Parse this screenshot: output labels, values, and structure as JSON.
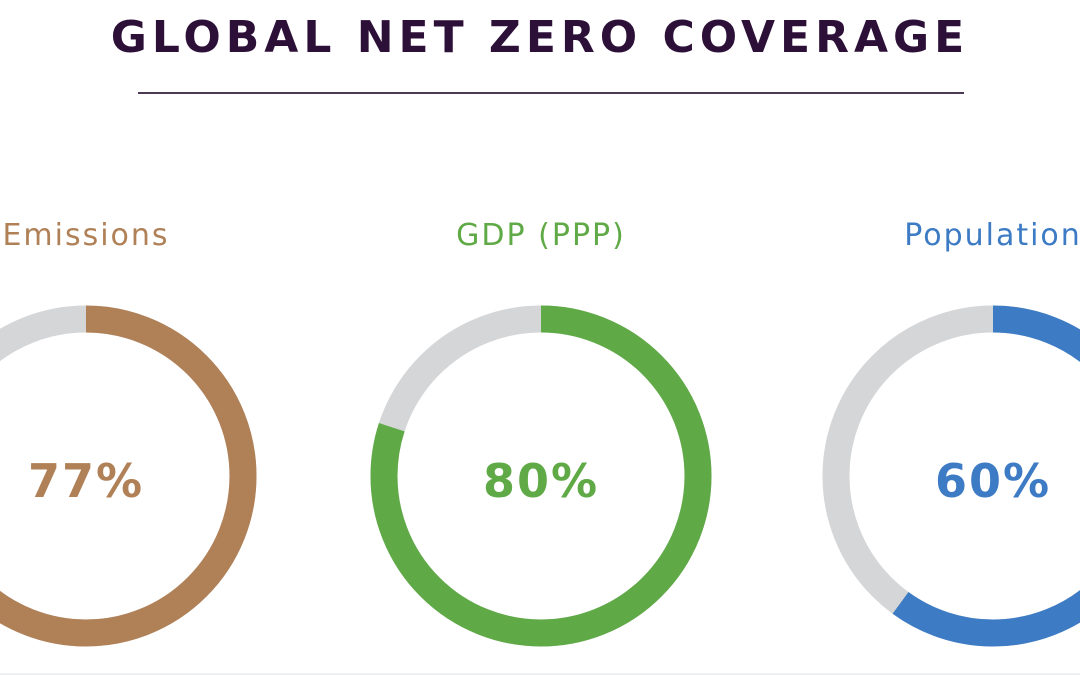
{
  "chart_data": {
    "type": "pie",
    "subtype": "donut",
    "title": "GLOBAL NET ZERO COVERAGE",
    "remainder_color": "#d5d6d8",
    "series": [
      {
        "name": "Emissions",
        "value": 77,
        "label": "77%",
        "color": "#b08057"
      },
      {
        "name": "GDP (PPP)",
        "value": 80,
        "label": "80%",
        "color": "#5faa46"
      },
      {
        "name": "Population",
        "value": 60,
        "label": "60%",
        "color": "#3d7bc4"
      }
    ]
  }
}
